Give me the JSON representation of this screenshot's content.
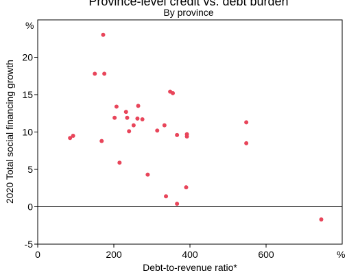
{
  "chart_data": {
    "type": "scatter",
    "title": "Province-level credit vs. debt burden",
    "subtitle": "By province",
    "xlabel": "Debt-to-revenue ratio*",
    "ylabel": "2020 Total social financing growth",
    "x_unit": "%",
    "y_unit": "%",
    "xlim": [
      0,
      800
    ],
    "ylim": [
      -5,
      25
    ],
    "x_ticks": [
      0,
      200,
      400,
      600
    ],
    "y_ticks": [
      -5,
      0,
      5,
      10,
      15,
      20
    ],
    "reference_line_y": 0,
    "grid": false,
    "point_color": "#e8455a",
    "points": [
      {
        "x": 85,
        "y": 9.2
      },
      {
        "x": 93,
        "y": 9.5
      },
      {
        "x": 150,
        "y": 17.8
      },
      {
        "x": 168,
        "y": 8.8
      },
      {
        "x": 172,
        "y": 23.0
      },
      {
        "x": 175,
        "y": 17.8
      },
      {
        "x": 202,
        "y": 11.9
      },
      {
        "x": 207,
        "y": 13.4
      },
      {
        "x": 215,
        "y": 5.9
      },
      {
        "x": 232,
        "y": 12.7
      },
      {
        "x": 235,
        "y": 11.9
      },
      {
        "x": 240,
        "y": 10.1
      },
      {
        "x": 252,
        "y": 10.9
      },
      {
        "x": 262,
        "y": 11.8
      },
      {
        "x": 264,
        "y": 13.5
      },
      {
        "x": 275,
        "y": 11.7
      },
      {
        "x": 289,
        "y": 4.3
      },
      {
        "x": 314,
        "y": 10.2
      },
      {
        "x": 333,
        "y": 10.9
      },
      {
        "x": 337,
        "y": 1.4
      },
      {
        "x": 348,
        "y": 15.4
      },
      {
        "x": 355,
        "y": 15.2
      },
      {
        "x": 366,
        "y": 9.6
      },
      {
        "x": 366,
        "y": 0.4
      },
      {
        "x": 390,
        "y": 2.6
      },
      {
        "x": 392,
        "y": 9.7
      },
      {
        "x": 392,
        "y": 9.4
      },
      {
        "x": 548,
        "y": 11.3
      },
      {
        "x": 548,
        "y": 8.5
      },
      {
        "x": 745,
        "y": -1.7
      }
    ]
  }
}
